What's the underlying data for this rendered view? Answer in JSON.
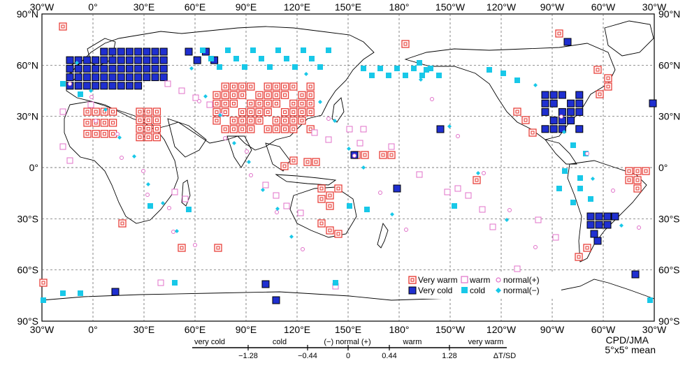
{
  "map": {
    "lon_labels": [
      "30°W",
      "0°",
      "30°E",
      "60°E",
      "90°E",
      "120°E",
      "150°E",
      "180°",
      "150°W",
      "120°W",
      "90°W",
      "60°W",
      "30°W"
    ],
    "lat_labels": [
      "90°N",
      "60°N",
      "30°N",
      "0°",
      "30°S",
      "60°S",
      "90°S"
    ],
    "colors": {
      "very_warm": "#e8403a",
      "warm": "#e070c8",
      "very_cold": "#1f2fd0",
      "cold": "#18c8e8",
      "land": "#000000",
      "grid": "#555555"
    }
  },
  "legend": {
    "very_warm": "Very warm",
    "very_cold": "Very cold",
    "warm": "warm",
    "cold": "cold",
    "normal_plus": "normal(+)",
    "normal_minus": "normal(−)"
  },
  "scale": {
    "categories": [
      "very cold",
      "cold",
      "(−) normal (+)",
      "warm",
      "very warm"
    ],
    "ticks": [
      "−1.28",
      "−0.44",
      "0",
      "0.44",
      "1.28"
    ],
    "unit": "ΔT/SD"
  },
  "credit": {
    "line1": "CPD/JMA",
    "line2": "5°x5° mean"
  }
}
